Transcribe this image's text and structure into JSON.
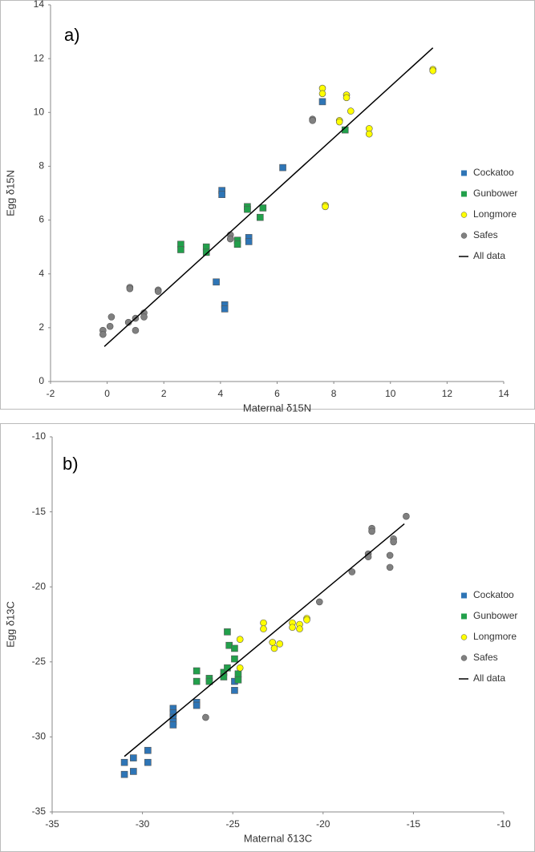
{
  "chart_data": [
    {
      "type": "scatter",
      "annotation": "a)",
      "xlabel": "Maternal δ15N",
      "ylabel": "Egg δ15N",
      "xlim": [
        -2,
        14
      ],
      "xticks": [
        -2,
        0,
        2,
        4,
        6,
        8,
        10,
        12,
        14
      ],
      "ylim": [
        0,
        14
      ],
      "yticks": [
        0,
        2,
        4,
        6,
        8,
        10,
        12,
        14
      ],
      "series": [
        {
          "name": "Cockatoo",
          "color": "#2e75b6",
          "marker": "square",
          "x": [
            7.6,
            6.2,
            4.05,
            4.05,
            3.85,
            4.15,
            4.15,
            5.0,
            5.0
          ],
          "values": [
            10.4,
            7.95,
            7.1,
            6.95,
            3.7,
            2.85,
            2.7,
            5.35,
            5.2
          ]
        },
        {
          "name": "Gunbower",
          "color": "#22a04b",
          "marker": "square",
          "x": [
            2.6,
            2.6,
            3.5,
            3.5,
            4.95,
            4.95,
            4.6,
            4.6,
            5.4,
            5.5,
            8.4
          ],
          "values": [
            5.1,
            4.9,
            5.0,
            4.8,
            6.5,
            6.4,
            5.25,
            5.1,
            6.1,
            6.45,
            9.35
          ]
        },
        {
          "name": "Longmore",
          "color": "#ffff00",
          "marker": "circle",
          "x": [
            7.6,
            7.6,
            8.45,
            8.45,
            8.6,
            8.2,
            8.2,
            9.25,
            9.25,
            11.5,
            11.5,
            7.7,
            7.7
          ],
          "values": [
            10.9,
            10.7,
            10.65,
            10.55,
            10.05,
            9.7,
            9.65,
            9.4,
            9.2,
            11.6,
            11.55,
            6.55,
            6.5
          ]
        },
        {
          "name": "Safes",
          "color": "#808080",
          "marker": "circle",
          "x": [
            -0.15,
            -0.15,
            0.1,
            0.15,
            0.8,
            0.8,
            0.75,
            1.0,
            1.0,
            1.3,
            1.3,
            1.8,
            1.8,
            4.35,
            4.35,
            7.25,
            7.25
          ],
          "values": [
            1.9,
            1.75,
            2.05,
            2.4,
            3.5,
            3.45,
            2.2,
            2.35,
            1.9,
            2.55,
            2.4,
            3.4,
            3.35,
            5.45,
            5.3,
            9.75,
            9.7
          ]
        },
        {
          "name": "All data",
          "color": "#000000",
          "marker": "line",
          "x": [
            -0.1,
            11.5
          ],
          "values": [
            1.3,
            12.4
          ]
        }
      ]
    },
    {
      "type": "scatter",
      "annotation": "b)",
      "xlabel": "Maternal  δ13C",
      "ylabel": "Egg  δ13C",
      "xlim": [
        -35,
        -10
      ],
      "xticks": [
        -35,
        -30,
        -25,
        -20,
        -15,
        -10
      ],
      "ylim": [
        -35,
        -10
      ],
      "yticks": [
        -35,
        -30,
        -25,
        -20,
        -15,
        -10
      ],
      "series": [
        {
          "name": "Cockatoo",
          "color": "#2e75b6",
          "marker": "square",
          "x": [
            -31,
            -31,
            -30.5,
            -30.5,
            -29.7,
            -29.7,
            -28.3,
            -28.3,
            -28.3,
            -28.3,
            -28.3,
            -27,
            -27,
            -24.9,
            -24.9
          ],
          "values": [
            -31.7,
            -32.5,
            -31.4,
            -32.3,
            -30.9,
            -31.7,
            -28.1,
            -28.4,
            -28.7,
            -29.0,
            -29.2,
            -27.7,
            -27.9,
            -26.3,
            -26.9
          ]
        },
        {
          "name": "Gunbower",
          "color": "#22a04b",
          "marker": "square",
          "x": [
            -27,
            -27,
            -26.3,
            -26.3,
            -25.5,
            -25.5,
            -25.3,
            -25.3,
            -25.2,
            -24.9,
            -24.9,
            -24.7,
            -24.7
          ],
          "values": [
            -25.6,
            -26.3,
            -26.1,
            -26.3,
            -25.7,
            -26.0,
            -25.4,
            -23.0,
            -23.9,
            -24.1,
            -24.8,
            -25.8,
            -26.2
          ]
        },
        {
          "name": "Longmore",
          "color": "#ffff00",
          "marker": "circle",
          "x": [
            -24.6,
            -24.6,
            -23.3,
            -23.3,
            -22.8,
            -22.7,
            -22.4,
            -21.7,
            -21.7,
            -21.3,
            -21.3,
            -20.9,
            -20.9
          ],
          "values": [
            -23.5,
            -25.4,
            -22.4,
            -22.8,
            -23.7,
            -24.1,
            -23.8,
            -22.4,
            -22.7,
            -22.5,
            -22.8,
            -22.1,
            -22.2
          ]
        },
        {
          "name": "Safes",
          "color": "#808080",
          "marker": "circle",
          "x": [
            -26.5,
            -20.2,
            -18.4,
            -17.5,
            -17.5,
            -17.3,
            -17.3,
            -16.3,
            -16.3,
            -16.1,
            -16.1,
            -15.4
          ],
          "values": [
            -28.7,
            -21.0,
            -19.0,
            -17.8,
            -18.0,
            -16.1,
            -16.3,
            -17.9,
            -18.7,
            -16.8,
            -17.0,
            -15.3
          ]
        },
        {
          "name": "All data",
          "color": "#000000",
          "marker": "line",
          "x": [
            -31,
            -15.5
          ],
          "values": [
            -31.3,
            -15.8
          ]
        }
      ]
    }
  ]
}
